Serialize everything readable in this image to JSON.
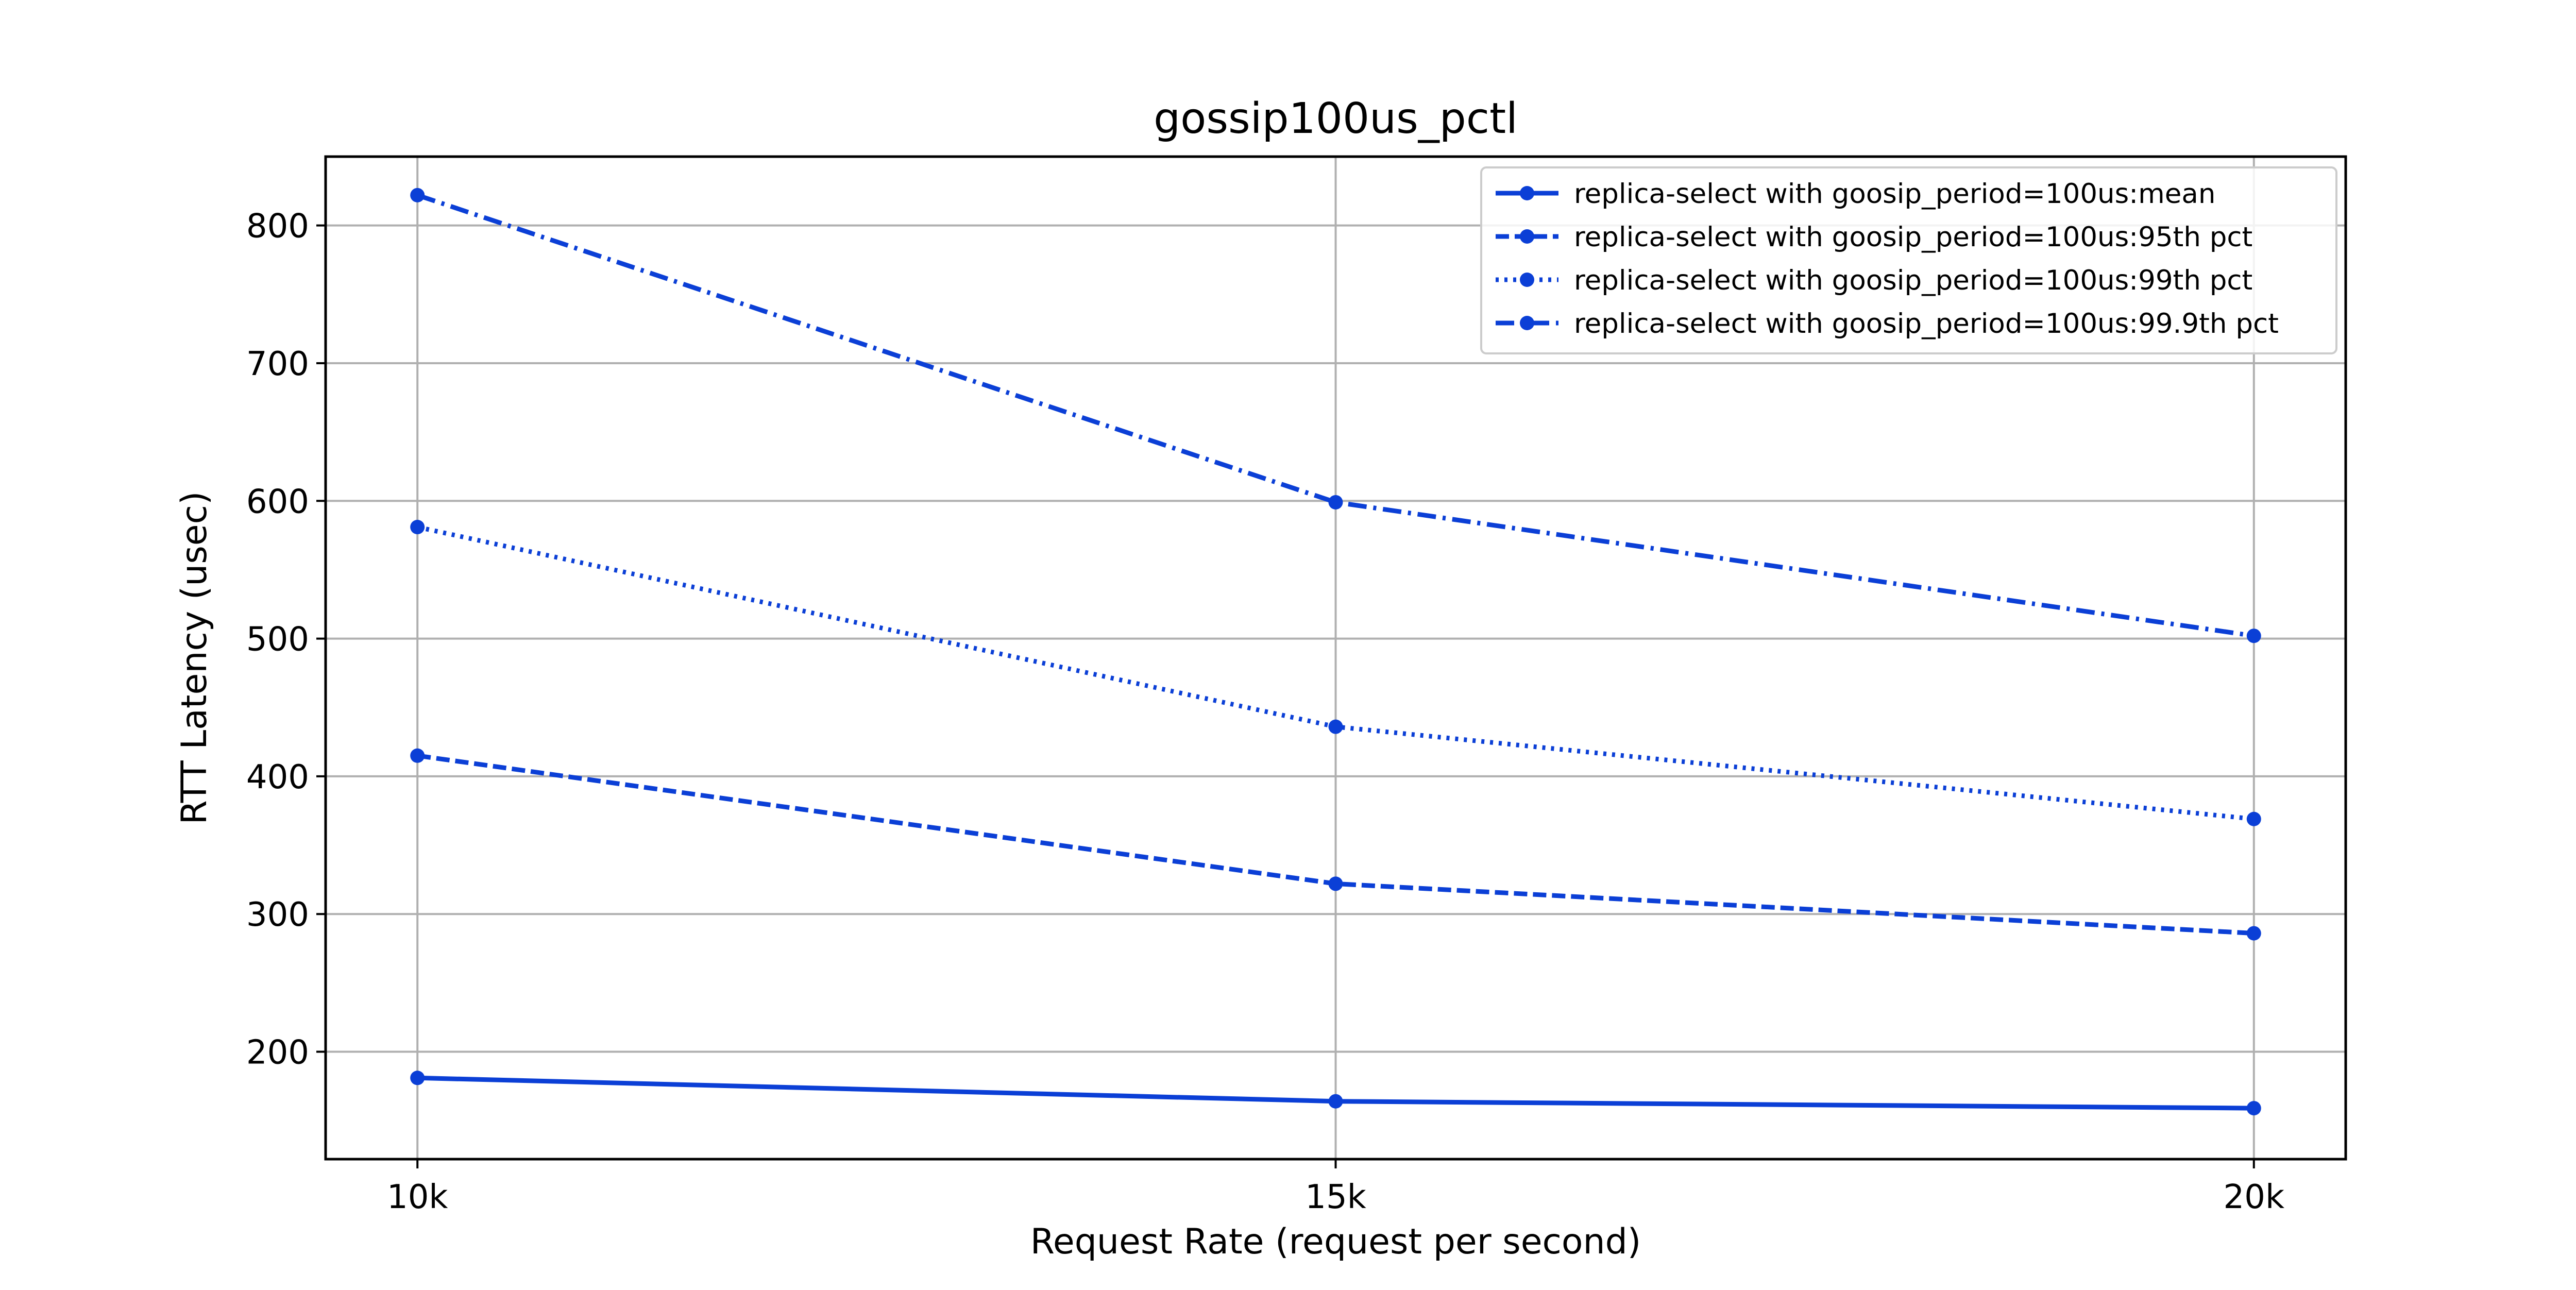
{
  "chart_data": {
    "type": "line",
    "title": "gossip100us_pctl",
    "xlabel": "Request Rate (request per second)",
    "ylabel": "RTT Latency (usec)",
    "x": [
      10000,
      15000,
      20000
    ],
    "x_tick_labels": [
      "10k",
      "15k",
      "20k"
    ],
    "y_ticks": [
      200,
      300,
      400,
      500,
      600,
      700,
      800
    ],
    "y_tick_labels": [
      "200",
      "300",
      "400",
      "500",
      "600",
      "700",
      "800"
    ],
    "xlim": [
      9500,
      20500
    ],
    "ylim": [
      122,
      850
    ],
    "grid": true,
    "legend_position": "top-right",
    "line_color": "#0b3fd6",
    "series": [
      {
        "name": "replica-select with goosip_period=100us:mean",
        "style": "solid",
        "values": [
          181,
          164,
          159
        ]
      },
      {
        "name": "replica-select with goosip_period=100us:95th pct",
        "style": "dashed",
        "values": [
          415,
          322,
          286
        ]
      },
      {
        "name": "replica-select with goosip_period=100us:99th pct",
        "style": "dotted",
        "values": [
          581,
          436,
          369
        ]
      },
      {
        "name": "replica-select with goosip_period=100us:99.9th pct",
        "style": "dashdot",
        "values": [
          822,
          599,
          502
        ]
      }
    ]
  }
}
